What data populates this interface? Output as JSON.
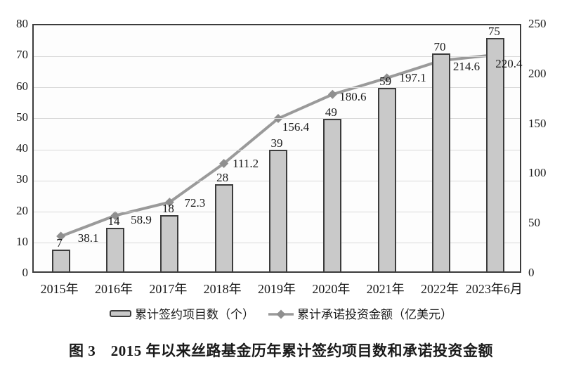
{
  "figure": {
    "caption": "图 3　2015 年以来丝路基金历年累计签约项目数和承诺投资金额"
  },
  "chart_data": {
    "type": "bar",
    "categories": [
      "2015年",
      "2016年",
      "2017年",
      "2018年",
      "2019年",
      "2020年",
      "2021年",
      "2022年",
      "2023年6月"
    ],
    "series": [
      {
        "name": "累计签约项目数（个）",
        "type": "bar",
        "axis": "left",
        "values": [
          7,
          14,
          18,
          28,
          39,
          49,
          59,
          70,
          75
        ]
      },
      {
        "name": "累计承诺投资金额（亿美元）",
        "type": "line",
        "axis": "right",
        "values": [
          38.1,
          58.9,
          72.3,
          111.2,
          156.4,
          180.6,
          197.1,
          214.6,
          220.4
        ]
      }
    ],
    "left_axis": {
      "range": [
        0,
        80
      ],
      "ticks": [
        0,
        10,
        20,
        30,
        40,
        50,
        60,
        70,
        80
      ]
    },
    "right_axis": {
      "range": [
        0,
        250
      ],
      "ticks": [
        0,
        50,
        100,
        150,
        200,
        250
      ]
    },
    "grid": "horizontal",
    "legend_position": "bottom",
    "title": "图 3　2015 年以来丝路基金历年累计签约项目数和承诺投资金额",
    "colors": {
      "bar_fill": "#c9c9c9",
      "bar_border": "#3c3c3c",
      "line": "#9a9a9a",
      "marker": "#8f8f8f",
      "grid": "#d9d9d9",
      "text": "#1a1a1a"
    }
  }
}
